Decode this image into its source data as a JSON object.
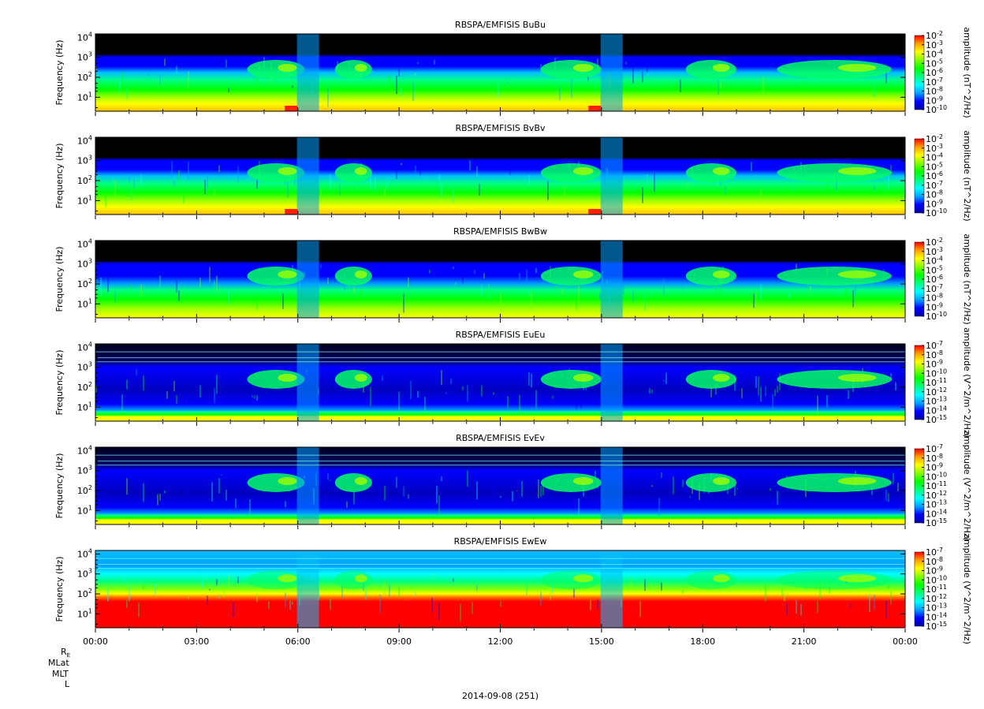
{
  "figure": {
    "date_label": "2014-09-08 (251)",
    "ephemeris_labels": [
      "R",
      "MLat",
      "MLT",
      "L"
    ],
    "re_subscript": "E",
    "time_ticks": [
      "00:00",
      "03:00",
      "06:00",
      "09:00",
      "12:00",
      "15:00",
      "18:00",
      "21:00",
      "00:00"
    ]
  },
  "colors": {
    "colormap": [
      "#0000a0",
      "#0000ff",
      "#00a0ff",
      "#00ffff",
      "#00ff80",
      "#00ff00",
      "#80ff00",
      "#ffff00",
      "#ffa000",
      "#ff0000"
    ],
    "night": "#000000"
  },
  "chart_data": [
    {
      "type": "heatmap",
      "title": "RBSPA/EMFISIS  BuBu",
      "ylabel": "Frequency (Hz)",
      "yscale": "log",
      "ylim": [
        2,
        15000
      ],
      "xlim": [
        "00:00",
        "24:00"
      ],
      "colorbar_label": "amplitude (nT^2/Hz)",
      "colorbar_ticks": [
        [
          "10",
          "-2"
        ],
        [
          "10",
          "-3"
        ],
        [
          "10",
          "-4"
        ],
        [
          "10",
          "-5"
        ],
        [
          "10",
          "-6"
        ],
        [
          "10",
          "-7"
        ],
        [
          "10",
          "-8"
        ],
        [
          "10",
          "-9"
        ],
        [
          "10",
          "-10"
        ]
      ],
      "y_ticks": [
        [
          "10",
          "4"
        ],
        [
          "10",
          "3"
        ],
        [
          "10",
          "2"
        ],
        [
          "10",
          "1"
        ]
      ],
      "kind": "B"
    },
    {
      "type": "heatmap",
      "title": "RBSPA/EMFISIS  BvBv",
      "ylabel": "Frequency (Hz)",
      "yscale": "log",
      "ylim": [
        2,
        15000
      ],
      "xlim": [
        "00:00",
        "24:00"
      ],
      "colorbar_label": "amplitude (nT^2/Hz)",
      "colorbar_ticks": [
        [
          "10",
          "-2"
        ],
        [
          "10",
          "-3"
        ],
        [
          "10",
          "-4"
        ],
        [
          "10",
          "-5"
        ],
        [
          "10",
          "-6"
        ],
        [
          "10",
          "-7"
        ],
        [
          "10",
          "-8"
        ],
        [
          "10",
          "-9"
        ],
        [
          "10",
          "-10"
        ]
      ],
      "y_ticks": [
        [
          "10",
          "4"
        ],
        [
          "10",
          "3"
        ],
        [
          "10",
          "2"
        ],
        [
          "10",
          "1"
        ]
      ],
      "kind": "B"
    },
    {
      "type": "heatmap",
      "title": "RBSPA/EMFISIS  BwBw",
      "ylabel": "Frequency (Hz)",
      "yscale": "log",
      "ylim": [
        2,
        15000
      ],
      "xlim": [
        "00:00",
        "24:00"
      ],
      "colorbar_label": "amplitude (nT^2/Hz)",
      "colorbar_ticks": [
        [
          "10",
          "-2"
        ],
        [
          "10",
          "-3"
        ],
        [
          "10",
          "-4"
        ],
        [
          "10",
          "-5"
        ],
        [
          "10",
          "-6"
        ],
        [
          "10",
          "-7"
        ],
        [
          "10",
          "-8"
        ],
        [
          "10",
          "-9"
        ],
        [
          "10",
          "-10"
        ]
      ],
      "y_ticks": [
        [
          "10",
          "4"
        ],
        [
          "10",
          "3"
        ],
        [
          "10",
          "2"
        ],
        [
          "10",
          "1"
        ]
      ],
      "kind": "Bw"
    },
    {
      "type": "heatmap",
      "title": "RBSPA/EMFISIS  EuEu",
      "ylabel": "Frequency (Hz)",
      "yscale": "log",
      "ylim": [
        2,
        15000
      ],
      "xlim": [
        "00:00",
        "24:00"
      ],
      "colorbar_label": "amplitude (V^2/m^2/Hz)",
      "colorbar_ticks": [
        [
          "10",
          "-7"
        ],
        [
          "10",
          "-8"
        ],
        [
          "10",
          "-9"
        ],
        [
          "10",
          "-10"
        ],
        [
          "10",
          "-11"
        ],
        [
          "10",
          "-12"
        ],
        [
          "10",
          "-13"
        ],
        [
          "10",
          "-14"
        ],
        [
          "10",
          "-15"
        ]
      ],
      "y_ticks": [
        [
          "10",
          "4"
        ],
        [
          "10",
          "3"
        ],
        [
          "10",
          "2"
        ],
        [
          "10",
          "1"
        ]
      ],
      "kind": "E"
    },
    {
      "type": "heatmap",
      "title": "RBSPA/EMFISIS  EvEv",
      "ylabel": "Frequency (Hz)",
      "yscale": "log",
      "ylim": [
        2,
        15000
      ],
      "xlim": [
        "00:00",
        "24:00"
      ],
      "colorbar_label": "amplitude (V^2/m^2/Hz)",
      "colorbar_ticks": [
        [
          "10",
          "-7"
        ],
        [
          "10",
          "-8"
        ],
        [
          "10",
          "-9"
        ],
        [
          "10",
          "-10"
        ],
        [
          "10",
          "-11"
        ],
        [
          "10",
          "-12"
        ],
        [
          "10",
          "-13"
        ],
        [
          "10",
          "-14"
        ],
        [
          "10",
          "-15"
        ]
      ],
      "y_ticks": [
        [
          "10",
          "4"
        ],
        [
          "10",
          "3"
        ],
        [
          "10",
          "2"
        ],
        [
          "10",
          "1"
        ]
      ],
      "kind": "E"
    },
    {
      "type": "heatmap",
      "title": "RBSPA/EMFISIS  EwEw",
      "ylabel": "Frequency (Hz)",
      "yscale": "log",
      "ylim": [
        2,
        15000
      ],
      "xlim": [
        "00:00",
        "24:00"
      ],
      "colorbar_label": "amplitude (V^2/m^2/Hz)",
      "colorbar_ticks": [
        [
          "10",
          "-7"
        ],
        [
          "10",
          "-8"
        ],
        [
          "10",
          "-9"
        ],
        [
          "10",
          "-10"
        ],
        [
          "10",
          "-11"
        ],
        [
          "10",
          "-12"
        ],
        [
          "10",
          "-13"
        ],
        [
          "10",
          "-14"
        ],
        [
          "10",
          "-15"
        ]
      ],
      "y_ticks": [
        [
          "10",
          "4"
        ],
        [
          "10",
          "3"
        ],
        [
          "10",
          "2"
        ],
        [
          "10",
          "1"
        ]
      ],
      "kind": "Ew"
    }
  ]
}
